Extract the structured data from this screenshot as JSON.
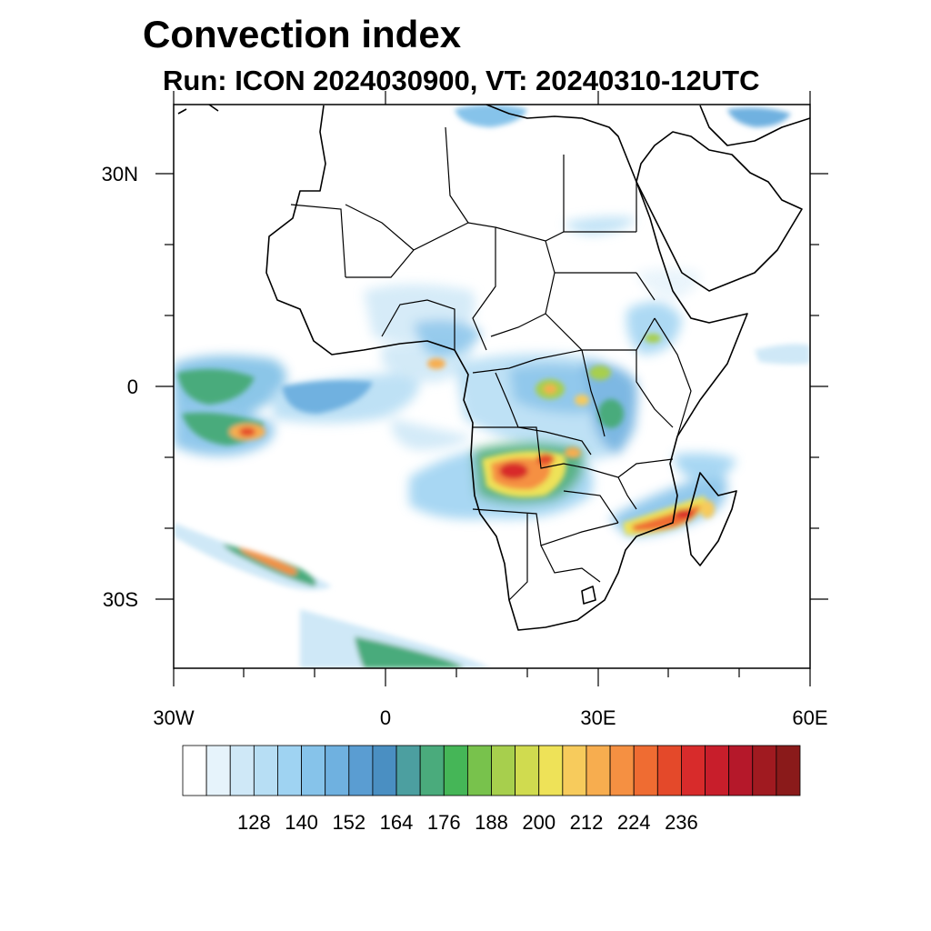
{
  "title": "Convection index",
  "subtitle": "Run: ICON 2024030900,  VT: 20240310-12UTC",
  "axes": {
    "lat_ticks": [
      "30N",
      "0",
      "30S"
    ],
    "lon_ticks": [
      "30W",
      "0",
      "30E",
      "60E"
    ],
    "lon_range": [
      -30,
      60
    ],
    "lat_range": [
      -40,
      40
    ]
  },
  "colorbar": {
    "labels": [
      "128",
      "140",
      "152",
      "164",
      "176",
      "188",
      "200",
      "212",
      "224",
      "236"
    ],
    "colors": [
      "#ffffff",
      "#e6f3fb",
      "#cfe8f7",
      "#b7def4",
      "#9fd3f2",
      "#86c3ea",
      "#6fb1e0",
      "#5a9dd2",
      "#4a8fc2",
      "#4c9fa0",
      "#4aab7c",
      "#45b657",
      "#78c24c",
      "#a7cf4d",
      "#d0db4f",
      "#eee258",
      "#f7cb5c",
      "#f7ad4f",
      "#f59042",
      "#ef6c32",
      "#e4492a",
      "#d82b2b",
      "#c81e2b",
      "#b5182a",
      "#a01a20",
      "#8a1a1a"
    ],
    "color_meaning": "convection index, white = low, dark red = high"
  },
  "regions": [
    {
      "name": "angola-zambia-maximum",
      "level": "high (200-236)"
    },
    {
      "name": "mozambique-channel-band",
      "level": "high (200-230)"
    },
    {
      "name": "atlantic-itcz-band",
      "level": "low-medium (128-164)"
    },
    {
      "name": "south-atlantic-frontal-band",
      "level": "medium-high (164-212)"
    }
  ]
}
